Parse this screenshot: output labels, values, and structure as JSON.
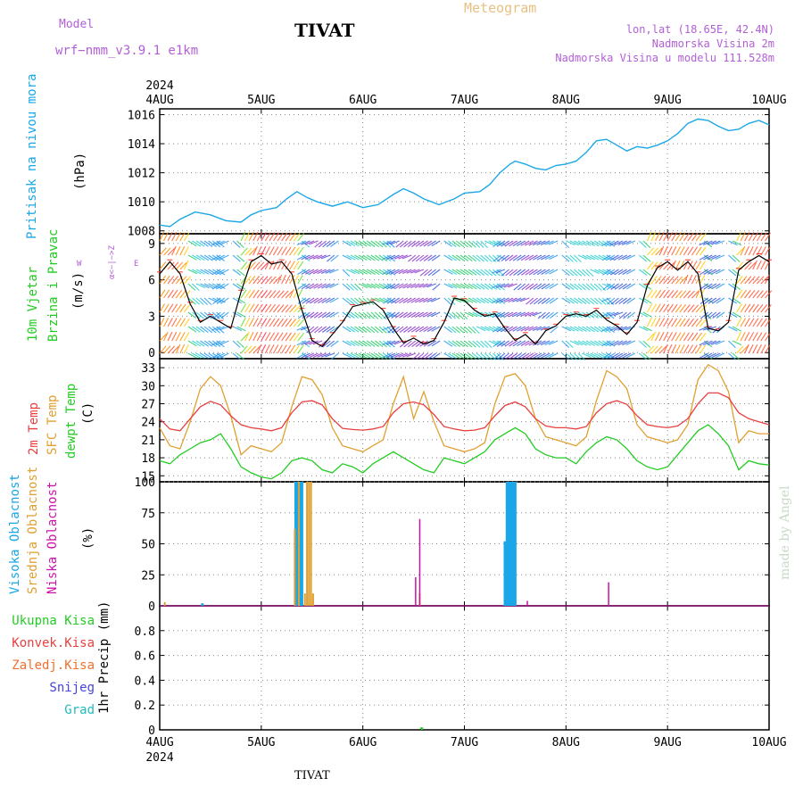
{
  "header": {
    "model_label": "Model",
    "model_name": "wrf−nmm_v3.9.1  e1km",
    "meteogram": "Meteogram",
    "station": "TIVAT",
    "lonlat": "lon,lat (18.65E, 42.4N)",
    "elevation": "Nadmorska Visina 2m",
    "model_elevation": "Nadmorska Visina u modelu 111.528m",
    "footer_station": "TIVAT",
    "credit": "made by Angel"
  },
  "colors": {
    "pressure": "#1aa7e8",
    "temp2m": "#e84040",
    "sfc": "#e0a030",
    "dewpt": "#22cc22",
    "high_cloud": "#1aa7e8",
    "mid_cloud": "#e0a030",
    "low_cloud": "#cc11aa",
    "header_magenta": "#b25fd6",
    "meteogram": "#e8c080"
  },
  "time_axis": {
    "year_top": "2024",
    "year_bottom": "2024",
    "ticks": [
      "4AUG",
      "5AUG",
      "6AUG",
      "7AUG",
      "8AUG",
      "9AUG",
      "10AUG"
    ]
  },
  "panels": {
    "pressure": {
      "label": "Pritisak na nivou mora",
      "unit": "(hPa)",
      "yticks": [
        "1016",
        "1014",
        "1012",
        "1010",
        "1008"
      ]
    },
    "wind": {
      "label1": "10m Vjetar",
      "label2": "Brzina i Pravac",
      "unit": "(m/s)",
      "yticks": [
        "9",
        "6",
        "3",
        "0"
      ],
      "compass": "W  <−|−>  E",
      "compass_small": "α<−|−>Z"
    },
    "temp": {
      "label1": "2m Temp",
      "label2": "SFC Temp",
      "label3": "dewpt Temp",
      "unit": "(C)",
      "yticks": [
        "33",
        "30",
        "27",
        "24",
        "21",
        "18",
        "15"
      ]
    },
    "cloud": {
      "label1": "Visoka Oblacnost",
      "label2": "Srednja Oblacnost",
      "label3": "Niska Oblacnost",
      "unit": "(%)",
      "yticks": [
        "100",
        "75",
        "50",
        "25",
        "0"
      ]
    },
    "precip": {
      "unit": "1hr Precip (mm)",
      "legend": [
        "Ukupna Kisa",
        "Konvek.Kisa",
        "Zaledj.Kisa",
        "Snijeg",
        "Grad"
      ],
      "yticks": [
        "0.8",
        "0.6",
        "0.4",
        "0.2",
        "0"
      ]
    }
  },
  "chart_data": [
    {
      "type": "line",
      "panel": "pressure",
      "xlabel": "",
      "ylabel": "(hPa)",
      "ylim": [
        1007.8,
        1016.4
      ],
      "x_unit": "days since 4AUG 00:00",
      "series": [
        {
          "name": "Pritisak na nivou mora",
          "x": [
            0,
            0.1,
            0.2,
            0.35,
            0.5,
            0.65,
            0.8,
            0.9,
            1.0,
            1.15,
            1.25,
            1.35,
            1.45,
            1.55,
            1.7,
            1.85,
            2.0,
            2.15,
            2.3,
            2.4,
            2.5,
            2.6,
            2.75,
            2.9,
            3.0,
            3.15,
            3.25,
            3.35,
            3.45,
            3.5,
            3.6,
            3.7,
            3.8,
            3.9,
            4.0,
            4.1,
            4.2,
            4.3,
            4.4,
            4.5,
            4.6,
            4.7,
            4.8,
            4.9,
            5.0,
            5.1,
            5.2,
            5.3,
            5.4,
            5.5,
            5.6,
            5.7,
            5.8,
            5.9,
            6.0
          ],
          "values": [
            1008.4,
            1008.3,
            1008.8,
            1009.3,
            1009.1,
            1008.7,
            1008.6,
            1009.1,
            1009.4,
            1009.6,
            1010.2,
            1010.7,
            1010.3,
            1010.0,
            1009.7,
            1010.0,
            1009.6,
            1009.8,
            1010.5,
            1010.9,
            1010.6,
            1010.2,
            1009.8,
            1010.2,
            1010.6,
            1010.7,
            1011.2,
            1012.0,
            1012.6,
            1012.8,
            1012.6,
            1012.3,
            1012.2,
            1012.5,
            1012.6,
            1012.8,
            1013.4,
            1014.2,
            1014.3,
            1013.9,
            1013.5,
            1013.8,
            1013.7,
            1013.9,
            1014.2,
            1014.7,
            1015.4,
            1015.7,
            1015.6,
            1015.2,
            1014.9,
            1015.0,
            1015.4,
            1015.6,
            1015.3
          ]
        }
      ]
    },
    {
      "type": "line",
      "panel": "wind",
      "xlabel": "",
      "ylabel": "(m/s)",
      "ylim": [
        -0.5,
        9.8
      ],
      "series": [
        {
          "name": "10m Vjetar Brzina",
          "x": [
            0,
            0.1,
            0.2,
            0.3,
            0.4,
            0.5,
            0.6,
            0.7,
            0.8,
            0.9,
            1.0,
            1.1,
            1.2,
            1.3,
            1.4,
            1.5,
            1.6,
            1.7,
            1.8,
            1.9,
            2.0,
            2.1,
            2.2,
            2.3,
            2.4,
            2.5,
            2.6,
            2.7,
            2.8,
            2.9,
            3.0,
            3.1,
            3.2,
            3.3,
            3.4,
            3.5,
            3.6,
            3.7,
            3.8,
            3.9,
            4.0,
            4.1,
            4.2,
            4.3,
            4.4,
            4.5,
            4.6,
            4.7,
            4.8,
            4.9,
            5.0,
            5.1,
            5.2,
            5.3,
            5.4,
            5.5,
            5.6,
            5.7,
            5.8,
            5.9,
            6.0
          ],
          "values": [
            6.5,
            7.5,
            6.5,
            4.0,
            2.5,
            3.0,
            2.5,
            2.0,
            5.0,
            7.5,
            8.0,
            7.3,
            7.5,
            6.5,
            3.5,
            1.0,
            0.5,
            1.5,
            2.5,
            3.8,
            4.0,
            4.2,
            3.5,
            2.0,
            0.8,
            1.2,
            0.7,
            1.0,
            2.5,
            4.5,
            4.3,
            3.5,
            3.0,
            3.2,
            2.0,
            1.0,
            1.5,
            0.7,
            1.8,
            2.2,
            3.0,
            3.2,
            3.0,
            3.5,
            2.7,
            2.2,
            1.5,
            2.5,
            5.5,
            7.0,
            7.5,
            6.8,
            7.5,
            6.5,
            2.0,
            1.8,
            2.5,
            6.8,
            7.5,
            8.0,
            7.5
          ]
        }
      ]
    },
    {
      "type": "line",
      "panel": "temp",
      "xlabel": "",
      "ylabel": "(C)",
      "ylim": [
        14,
        34.5
      ],
      "series": [
        {
          "name": "2m Temp",
          "x": [
            0,
            0.1,
            0.2,
            0.3,
            0.4,
            0.5,
            0.6,
            0.7,
            0.8,
            0.9,
            1.0,
            1.1,
            1.2,
            1.3,
            1.4,
            1.5,
            1.6,
            1.7,
            1.8,
            1.9,
            2.0,
            2.1,
            2.2,
            2.3,
            2.4,
            2.5,
            2.6,
            2.7,
            2.8,
            2.9,
            3.0,
            3.1,
            3.2,
            3.3,
            3.4,
            3.5,
            3.6,
            3.7,
            3.8,
            3.9,
            4.0,
            4.1,
            4.2,
            4.3,
            4.4,
            4.5,
            4.6,
            4.7,
            4.8,
            4.9,
            5.0,
            5.1,
            5.2,
            5.3,
            5.4,
            5.5,
            5.6,
            5.7,
            5.8,
            5.9,
            6.0
          ],
          "values": [
            24.5,
            22.8,
            22.5,
            24.5,
            26.5,
            27.4,
            26.8,
            25.0,
            23.5,
            23.0,
            22.8,
            22.5,
            23.0,
            25.5,
            27.3,
            27.5,
            26.8,
            24.5,
            22.9,
            22.7,
            22.6,
            22.8,
            23.2,
            25.5,
            27.0,
            27.3,
            26.8,
            25.2,
            23.2,
            22.8,
            22.5,
            22.6,
            23.0,
            25.0,
            26.7,
            27.3,
            26.5,
            24.5,
            23.3,
            23.0,
            23.0,
            22.8,
            23.2,
            25.5,
            27.0,
            27.5,
            26.9,
            25.0,
            23.5,
            23.2,
            23.0,
            23.3,
            24.5,
            27.0,
            28.8,
            28.8,
            28.0,
            25.5,
            24.5,
            24.0,
            23.5
          ]
        },
        {
          "name": "SFC Temp",
          "x": [
            0,
            0.1,
            0.2,
            0.3,
            0.4,
            0.5,
            0.6,
            0.7,
            0.8,
            0.9,
            1.0,
            1.1,
            1.2,
            1.3,
            1.4,
            1.5,
            1.6,
            1.7,
            1.8,
            1.9,
            2.0,
            2.1,
            2.2,
            2.3,
            2.4,
            2.5,
            2.6,
            2.7,
            2.8,
            2.9,
            3.0,
            3.1,
            3.2,
            3.3,
            3.4,
            3.5,
            3.6,
            3.7,
            3.8,
            3.9,
            4.0,
            4.1,
            4.2,
            4.3,
            4.4,
            4.5,
            4.6,
            4.7,
            4.8,
            4.9,
            5.0,
            5.1,
            5.2,
            5.3,
            5.4,
            5.5,
            5.6,
            5.7,
            5.8,
            5.9,
            6.0
          ],
          "values": [
            23.0,
            20.0,
            19.5,
            24.0,
            29.5,
            31.5,
            30.0,
            25.0,
            18.5,
            20.0,
            19.5,
            19.0,
            20.5,
            26.5,
            31.5,
            31.0,
            28.5,
            23.0,
            20.0,
            19.5,
            19.0,
            20.0,
            21.0,
            27.0,
            31.5,
            24.5,
            29.0,
            24.0,
            20.0,
            19.5,
            19.0,
            19.5,
            20.5,
            27.0,
            31.5,
            32.0,
            30.0,
            24.5,
            21.5,
            21.0,
            20.5,
            20.0,
            21.5,
            27.5,
            32.5,
            31.5,
            29.5,
            23.5,
            21.5,
            21.0,
            20.5,
            21.0,
            23.5,
            31.0,
            33.5,
            32.5,
            29.0,
            20.5,
            22.5,
            22.0,
            22.0
          ]
        },
        {
          "name": "dewpt Temp",
          "x": [
            0,
            0.1,
            0.2,
            0.3,
            0.4,
            0.5,
            0.6,
            0.7,
            0.8,
            0.9,
            1.0,
            1.1,
            1.2,
            1.3,
            1.4,
            1.5,
            1.6,
            1.7,
            1.8,
            1.9,
            2.0,
            2.1,
            2.2,
            2.3,
            2.4,
            2.5,
            2.6,
            2.7,
            2.8,
            2.9,
            3.0,
            3.1,
            3.2,
            3.3,
            3.4,
            3.5,
            3.6,
            3.7,
            3.8,
            3.9,
            4.0,
            4.1,
            4.2,
            4.3,
            4.4,
            4.5,
            4.6,
            4.7,
            4.8,
            4.9,
            5.0,
            5.1,
            5.2,
            5.3,
            5.4,
            5.5,
            5.6,
            5.7,
            5.8,
            5.9,
            6.0
          ],
          "values": [
            17.5,
            17.0,
            18.5,
            19.5,
            20.5,
            21.0,
            22.0,
            19.5,
            16.5,
            15.5,
            14.8,
            14.5,
            15.5,
            17.5,
            18.0,
            17.5,
            16.0,
            15.5,
            17.0,
            16.5,
            15.5,
            17.0,
            18.0,
            19.0,
            18.0,
            17.0,
            16.0,
            15.5,
            18.0,
            17.5,
            17.0,
            18.0,
            19.0,
            21.0,
            22.0,
            23.0,
            22.0,
            19.5,
            18.5,
            18.0,
            18.0,
            17.0,
            19.0,
            20.5,
            21.5,
            21.0,
            19.5,
            17.5,
            16.5,
            16.0,
            16.5,
            18.5,
            20.5,
            22.5,
            23.5,
            22.0,
            20.0,
            16.0,
            17.5,
            17.0,
            16.8
          ]
        }
      ]
    },
    {
      "type": "bar",
      "panel": "cloud",
      "xlabel": "",
      "ylabel": "(%)",
      "ylim": [
        0,
        100
      ],
      "series": [
        {
          "name": "Visoka Oblacnost",
          "x": [
            1.34,
            1.36,
            1.38,
            1.4,
            3.4,
            3.42,
            3.44,
            3.46,
            3.48,
            3.5,
            0.42
          ],
          "values": [
            100,
            100,
            100,
            100,
            52,
            100,
            100,
            100,
            100,
            100,
            2
          ]
        },
        {
          "name": "Srednja Oblacnost",
          "x": [
            1.33,
            1.37,
            1.45,
            1.47,
            1.49,
            1.51,
            1.43,
            2.56,
            0.05
          ],
          "values": [
            62,
            100,
            100,
            100,
            100,
            10,
            10,
            10,
            3
          ]
        },
        {
          "name": "Niska Oblacnost",
          "x": [
            2.52,
            2.56,
            3.62,
            4.42
          ],
          "values": [
            23,
            70,
            4,
            19
          ]
        }
      ]
    },
    {
      "type": "bar",
      "panel": "precip",
      "xlabel": "",
      "ylabel": "1hr Precip (mm)",
      "ylim": [
        0,
        1
      ],
      "series": [
        {
          "name": "Ukupna Kisa",
          "x": [
            2.58
          ],
          "values": [
            0.02
          ]
        }
      ]
    }
  ]
}
